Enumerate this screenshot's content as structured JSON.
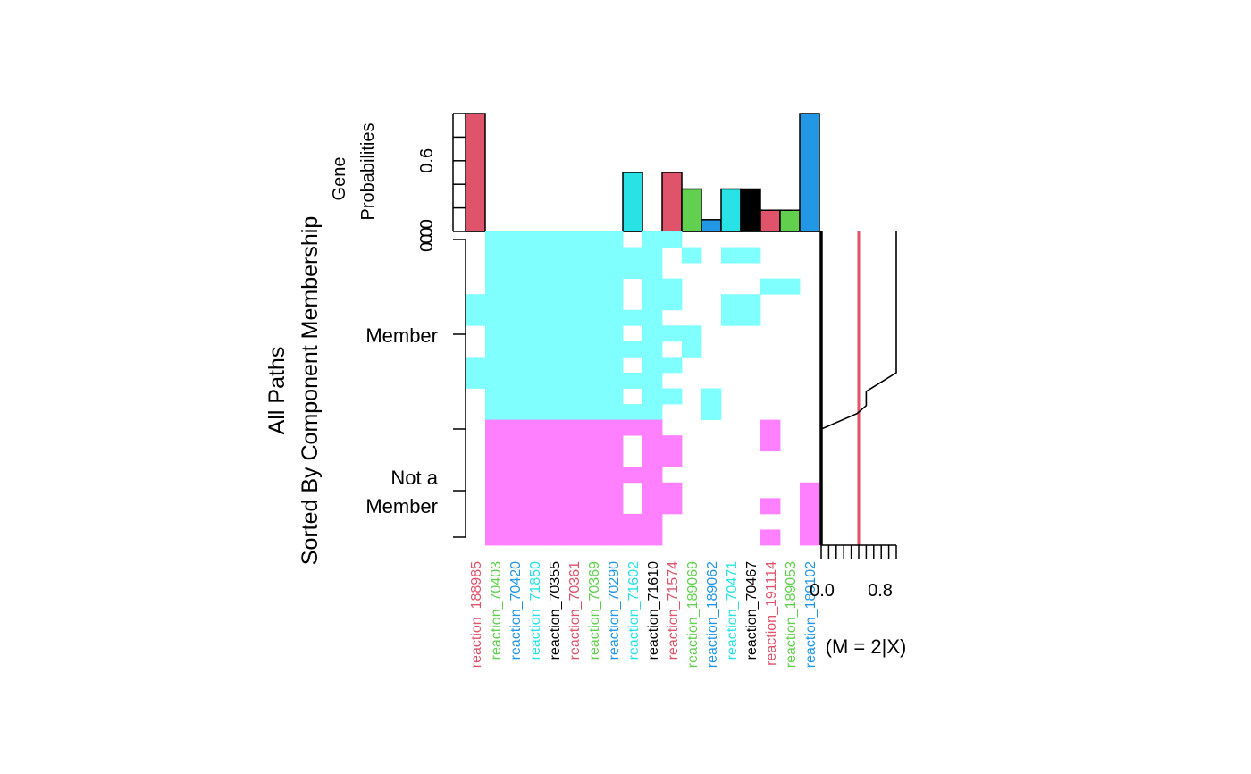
{
  "chart_data": {
    "type": "heatmap",
    "ylabel_line1": "All Paths",
    "ylabel_line2": "Sorted By Component Membership",
    "row_group_labels": [
      {
        "lines": [
          "Member"
        ]
      },
      {
        "lines": [
          "Not a",
          "Member"
        ]
      }
    ],
    "columns": [
      {
        "name": "reaction_188985",
        "color": "#DF536B",
        "prob": 1.0
      },
      {
        "name": "reaction_70403",
        "color": "#61D04F",
        "prob": 0
      },
      {
        "name": "reaction_70420",
        "color": "#2297E6",
        "prob": 0
      },
      {
        "name": "reaction_71850",
        "color": "#28E2E5",
        "prob": 0
      },
      {
        "name": "reaction_70355",
        "color": "#000000",
        "prob": 0
      },
      {
        "name": "reaction_70361",
        "color": "#DF536B",
        "prob": 0
      },
      {
        "name": "reaction_70369",
        "color": "#61D04F",
        "prob": 0
      },
      {
        "name": "reaction_70290",
        "color": "#2297E6",
        "prob": 0
      },
      {
        "name": "reaction_71602",
        "color": "#28E2E5",
        "prob": 0.5
      },
      {
        "name": "reaction_71610",
        "color": "#000000",
        "prob": 0
      },
      {
        "name": "reaction_71574",
        "color": "#DF536B",
        "prob": 0.5
      },
      {
        "name": "reaction_189069",
        "color": "#61D04F",
        "prob": 0.36
      },
      {
        "name": "reaction_189062",
        "color": "#2297E6",
        "prob": 0.1
      },
      {
        "name": "reaction_70471",
        "color": "#28E2E5",
        "prob": 0.36
      },
      {
        "name": "reaction_70467",
        "color": "#000000",
        "prob": 0.36
      },
      {
        "name": "reaction_191114",
        "color": "#DF536B",
        "prob": 0.18
      },
      {
        "name": "reaction_189053",
        "color": "#61D04F",
        "prob": 0.18
      },
      {
        "name": "reaction_189102",
        "color": "#2297E6",
        "prob": 1.0
      }
    ],
    "member_fill": "#80FFFF",
    "nonmember_fill": "#FF80FF",
    "n_member_rows": 12,
    "rows": [
      [
        0,
        1,
        1,
        1,
        1,
        1,
        1,
        1,
        0,
        1,
        1,
        0,
        0,
        0,
        0,
        0,
        0,
        0
      ],
      [
        0,
        1,
        1,
        1,
        1,
        1,
        1,
        1,
        1,
        1,
        0,
        1,
        0,
        1,
        1,
        0,
        0,
        0
      ],
      [
        0,
        1,
        1,
        1,
        1,
        1,
        1,
        1,
        1,
        1,
        0,
        0,
        0,
        0,
        0,
        0,
        0,
        0
      ],
      [
        0,
        1,
        1,
        1,
        1,
        1,
        1,
        1,
        0,
        1,
        1,
        0,
        0,
        0,
        0,
        1,
        1,
        0
      ],
      [
        1,
        1,
        1,
        1,
        1,
        1,
        1,
        1,
        0,
        1,
        1,
        0,
        0,
        1,
        1,
        0,
        0,
        0
      ],
      [
        1,
        1,
        1,
        1,
        1,
        1,
        1,
        1,
        1,
        1,
        0,
        0,
        0,
        1,
        1,
        0,
        0,
        0
      ],
      [
        0,
        1,
        1,
        1,
        1,
        1,
        1,
        1,
        0,
        1,
        1,
        1,
        0,
        0,
        0,
        0,
        0,
        0
      ],
      [
        0,
        1,
        1,
        1,
        1,
        1,
        1,
        1,
        1,
        1,
        0,
        1,
        0,
        0,
        0,
        0,
        0,
        0
      ],
      [
        1,
        1,
        1,
        1,
        1,
        1,
        1,
        1,
        0,
        1,
        1,
        0,
        0,
        0,
        0,
        0,
        0,
        0
      ],
      [
        1,
        1,
        1,
        1,
        1,
        1,
        1,
        1,
        1,
        1,
        0,
        0,
        0,
        0,
        0,
        0,
        0,
        0
      ],
      [
        0,
        1,
        1,
        1,
        1,
        1,
        1,
        1,
        0,
        1,
        1,
        0,
        1,
        0,
        0,
        0,
        0,
        0
      ],
      [
        0,
        1,
        1,
        1,
        1,
        1,
        1,
        1,
        1,
        1,
        0,
        0,
        1,
        0,
        0,
        0,
        0,
        0
      ],
      [
        0,
        1,
        1,
        1,
        1,
        1,
        1,
        1,
        1,
        1,
        0,
        0,
        0,
        0,
        0,
        1,
        0,
        0
      ],
      [
        0,
        1,
        1,
        1,
        1,
        1,
        1,
        1,
        0,
        1,
        1,
        0,
        0,
        0,
        0,
        1,
        0,
        0
      ],
      [
        0,
        1,
        1,
        1,
        1,
        1,
        1,
        1,
        0,
        1,
        1,
        0,
        0,
        0,
        0,
        0,
        0,
        0
      ],
      [
        0,
        1,
        1,
        1,
        1,
        1,
        1,
        1,
        1,
        1,
        0,
        0,
        0,
        0,
        0,
        0,
        0,
        0
      ],
      [
        0,
        1,
        1,
        1,
        1,
        1,
        1,
        1,
        0,
        1,
        1,
        0,
        0,
        0,
        0,
        0,
        0,
        1
      ],
      [
        0,
        1,
        1,
        1,
        1,
        1,
        1,
        1,
        0,
        1,
        1,
        0,
        0,
        0,
        0,
        1,
        0,
        1
      ],
      [
        0,
        1,
        1,
        1,
        1,
        1,
        1,
        1,
        1,
        1,
        0,
        0,
        0,
        0,
        0,
        0,
        0,
        1
      ],
      [
        0,
        1,
        1,
        1,
        1,
        1,
        1,
        1,
        1,
        1,
        0,
        0,
        0,
        0,
        0,
        1,
        0,
        1
      ]
    ],
    "top_panel": {
      "ylabel_line1": "Gene",
      "ylabel_line2": "Probabilities",
      "ylim": [
        0,
        1
      ],
      "tick_labels": [
        "0.0",
        "0.6"
      ]
    },
    "right_panel": {
      "xlabel": "(M = 2|X)",
      "xlim": [
        0,
        1
      ],
      "tick_labels": [
        "0.0",
        "0.8"
      ],
      "threshold": 0.5,
      "threshold_color": "#DF536B",
      "step_line": [
        {
          "row": 0,
          "value": 1.0
        },
        {
          "row": 9.0,
          "value": 1.0
        },
        {
          "row": 10.2,
          "value": 0.6
        },
        {
          "row": 11.1,
          "value": 0.6
        },
        {
          "row": 11.6,
          "value": 0.48
        },
        {
          "row": 12.6,
          "value": 0.0
        },
        {
          "row": 20,
          "value": 0.0
        }
      ]
    }
  }
}
